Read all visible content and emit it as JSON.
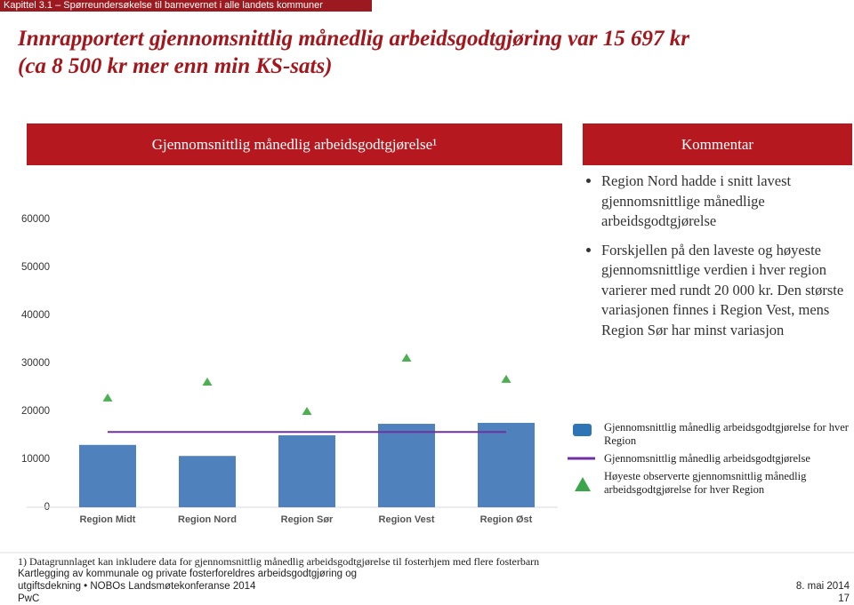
{
  "header": {
    "chapter": "Kapittel 3.1 – Spørreundersøkelse til barnevernet i alle landets kommuner",
    "title": [
      "Innrapportert gjennomsnittlig månedlig arbeidsgodtgjøring var 15 697 kr",
      "(ca 8 500 kr mer enn min KS-sats)"
    ]
  },
  "chart_data": {
    "type": "bar",
    "title": "Gjennomsnittlig månedlig arbeidsgodtgjørelse¹",
    "categories": [
      "Region Midt",
      "Region Nord",
      "Region Sør",
      "Region Vest",
      "Region Øst"
    ],
    "series": [
      {
        "name": "Gjennomsnittlig månedlig arbeidsgodtgjørelse for hver Region",
        "type": "bar",
        "color": "#4f81bd",
        "values": [
          13000,
          10700,
          15000,
          17400,
          17600
        ]
      },
      {
        "name": "Gjennomsnittlig månedlig arbeidsgodtgjørelse",
        "type": "line",
        "color": "#7030a0",
        "values": [
          15697,
          15697,
          15697,
          15697,
          15697
        ]
      },
      {
        "name": "Høyeste observerte gjennomsnittlig månedlig arbeidsgodtgjørelse for hver Region",
        "type": "scatter",
        "color": "#4caf50",
        "values": [
          22800,
          26100,
          20000,
          31100,
          26700
        ]
      }
    ],
    "ylim": [
      0,
      60000
    ],
    "yticks": [
      0,
      10000,
      20000,
      30000,
      40000,
      50000,
      60000
    ],
    "grid": false
  },
  "comments": {
    "title": "Kommentar",
    "items": [
      "Region Nord hadde i snitt lavest gjennomsnittlige månedlige arbeidsgodtgjørelse",
      "Forskjellen på den laveste og høyeste gjennomsnittlige verdien i hver region varierer med rundt 20 000 kr. Den største variasjonen finnes i Region Vest, mens Region Sør har minst variasjon"
    ]
  },
  "footer": {
    "note": "1) Datagrunnlaget kan inkludere data for gjennomsnittlig månedlig arbeidsgodtgjørelse til fosterhjem med flere fosterbarn",
    "source": [
      "Kartlegging av kommunale og private fosterforeldres arbeidsgodtgjøring og",
      "utgiftsdekning • NOBOs Landsmøtekonferanse 2014"
    ],
    "company": "PwC",
    "date": "8. mai 2014",
    "page": "17"
  }
}
